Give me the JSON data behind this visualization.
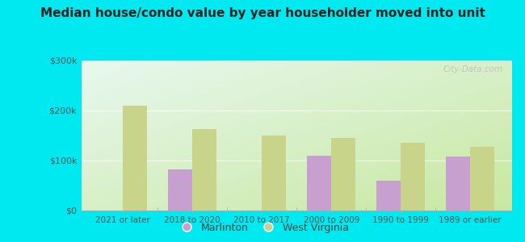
{
  "title": "Median house/condo value by year householder moved into unit",
  "categories": [
    "2021 or later",
    "2018 to 2020",
    "2010 to 2017",
    "2000 to 2009",
    "1990 to 1999",
    "1989 or earlier"
  ],
  "marlinton": [
    null,
    82000,
    null,
    110000,
    60000,
    108000
  ],
  "west_virginia": [
    210000,
    163000,
    150000,
    145000,
    135000,
    128000
  ],
  "marlinton_color": "#c8a0d0",
  "west_virginia_color": "#c8d48a",
  "background_outer": "#00e8f0",
  "background_inner_topleft": "#e8f8f0",
  "background_inner_bottomright": "#c8e8a0",
  "ylim": [
    0,
    300000
  ],
  "yticks": [
    0,
    100000,
    200000,
    300000
  ],
  "ytick_labels": [
    "$0",
    "$100k",
    "$200k",
    "$300k"
  ],
  "bar_width": 0.35,
  "legend_marlinton": "Marlinton",
  "legend_wv": "West Virginia",
  "watermark": "City-Data.com"
}
